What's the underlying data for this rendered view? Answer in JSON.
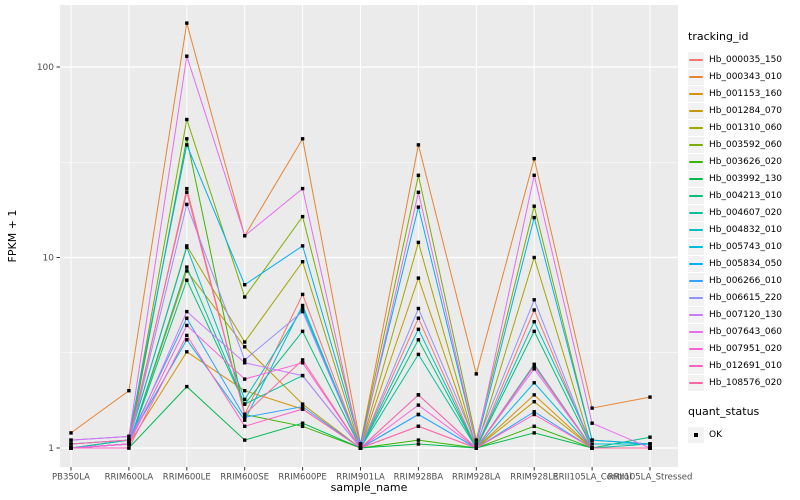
{
  "chart_data": {
    "type": "line",
    "title": "",
    "xlabel": "sample_name",
    "ylabel": "FPKM + 1",
    "yscale": "log10",
    "ylim": [
      0.88,
      210
    ],
    "yticks": [
      1,
      10,
      100
    ],
    "ytick_labels": [
      "1",
      "10",
      "100"
    ],
    "minor_gridlines": [
      3.1623,
      31.623
    ],
    "grid": true,
    "panel_bg": "#EBEBEB",
    "grid_color": "#FFFFFF",
    "tick_label_color": "#4D4D4D",
    "point_color": "#000000",
    "legend_position": "right",
    "categories": [
      "PB350LA",
      "RRIM600LA",
      "RRIM600LE",
      "RRIM600SE",
      "RRIM600PE",
      "RRIM901LA",
      "RRIM928BA",
      "RRIM928LA",
      "RRIM928LE",
      "RRII105LA_Control",
      "RRII105LA_Stressed"
    ],
    "series": [
      {
        "name": "Hb_000035_150",
        "color": "#F8766D",
        "values": [
          1.0,
          1.05,
          23,
          1.5,
          6.4,
          1.0,
          4.8,
          1.0,
          5.3,
          1.0,
          1.0
        ]
      },
      {
        "name": "Hb_000343_010",
        "color": "#EA8331",
        "values": [
          1.2,
          2.0,
          170,
          13,
          42,
          1.05,
          39,
          2.45,
          33,
          1.62,
          1.85
        ]
      },
      {
        "name": "Hb_001153_160",
        "color": "#D89000",
        "values": [
          1.0,
          1.05,
          3.2,
          2.0,
          1.6,
          1.0,
          1.3,
          1.0,
          1.9,
          1.0,
          1.0
        ]
      },
      {
        "name": "Hb_001284_070",
        "color": "#C09B00",
        "values": [
          1.0,
          1.05,
          8.5,
          3.4,
          1.7,
          1.0,
          7.8,
          1.0,
          1.75,
          1.0,
          1.0
        ]
      },
      {
        "name": "Hb_001310_060",
        "color": "#A3A500",
        "values": [
          1.0,
          1.1,
          11.5,
          3.6,
          9.5,
          1.0,
          12.0,
          1.0,
          10.0,
          1.0,
          1.0
        ]
      },
      {
        "name": "Hb_003592_060",
        "color": "#7CAE00",
        "values": [
          1.0,
          1.1,
          53,
          6.2,
          16.4,
          1.05,
          27,
          1.1,
          18.6,
          1.1,
          1.05
        ]
      },
      {
        "name": "Hb_003626_020",
        "color": "#39B600",
        "values": [
          1.0,
          1.05,
          42,
          1.5,
          1.3,
          1.0,
          1.1,
          1.0,
          1.3,
          1.0,
          1.0
        ]
      },
      {
        "name": "Hb_003992_130",
        "color": "#00BB4E",
        "values": [
          1.0,
          1.0,
          2.1,
          1.1,
          1.35,
          1.0,
          1.05,
          1.0,
          1.2,
          1.0,
          1.0
        ]
      },
      {
        "name": "Hb_004213_010",
        "color": "#00C079",
        "values": [
          1.0,
          1.05,
          7.6,
          1.7,
          4.1,
          1.0,
          3.7,
          1.0,
          4.1,
          1.0,
          1.14
        ]
      },
      {
        "name": "Hb_004607_020",
        "color": "#00C19C",
        "values": [
          1.0,
          1.05,
          8.9,
          1.7,
          2.4,
          1.0,
          3.1,
          1.0,
          2.75,
          1.0,
          1.05
        ]
      },
      {
        "name": "Hb_004832_010",
        "color": "#00BFC4",
        "values": [
          1.0,
          1.1,
          11.3,
          1.8,
          5.4,
          1.0,
          4.2,
          1.0,
          4.6,
          1.05,
          1.05
        ]
      },
      {
        "name": "Hb_005743_010",
        "color": "#00BAE0",
        "values": [
          1.05,
          1.1,
          3.7,
          1.4,
          5.6,
          1.0,
          1.5,
          1.0,
          2.2,
          1.0,
          1.0
        ]
      },
      {
        "name": "Hb_005834_050",
        "color": "#00B0F6",
        "values": [
          1.1,
          1.15,
          39,
          7.2,
          11.5,
          1.05,
          18.4,
          1.05,
          16.2,
          1.1,
          1.05
        ]
      },
      {
        "name": "Hb_006266_010",
        "color": "#35A2FF",
        "values": [
          1.05,
          1.1,
          4.8,
          1.45,
          1.65,
          1.0,
          1.5,
          1.0,
          1.55,
          1.0,
          1.0
        ]
      },
      {
        "name": "Hb_006615_220",
        "color": "#9590FF",
        "values": [
          1.0,
          1.05,
          19,
          2.9,
          5.2,
          1.0,
          5.4,
          1.05,
          6.0,
          1.0,
          1.0
        ]
      },
      {
        "name": "Hb_007120_130",
        "color": "#C77CFF",
        "values": [
          1.0,
          1.05,
          5.2,
          2.8,
          2.4,
          1.0,
          1.9,
          1.0,
          2.6,
          1.0,
          1.0
        ]
      },
      {
        "name": "Hb_007643_060",
        "color": "#E76BF3",
        "values": [
          1.1,
          1.15,
          114,
          13,
          23,
          1.0,
          22,
          1.05,
          27,
          1.35,
          1.0
        ]
      },
      {
        "name": "Hb_007951_020",
        "color": "#FA62DB",
        "values": [
          1.0,
          1.05,
          4.4,
          2.3,
          2.8,
          1.0,
          1.68,
          1.0,
          2.7,
          1.0,
          1.0
        ]
      },
      {
        "name": "Hb_012691_010",
        "color": "#FF61C3",
        "values": [
          1.0,
          1.0,
          3.9,
          1.3,
          1.6,
          1.0,
          1.3,
          1.0,
          1.5,
          1.0,
          1.0
        ]
      },
      {
        "name": "Hb_108576_020",
        "color": "#FF67A4",
        "values": [
          1.05,
          1.1,
          22,
          1.5,
          2.9,
          1.0,
          1.9,
          1.0,
          2.7,
          1.0,
          1.0
        ]
      }
    ],
    "legend": {
      "title": "tracking_id"
    },
    "legend2": {
      "title": "quant_status",
      "items": [
        {
          "label": "OK"
        }
      ]
    }
  }
}
